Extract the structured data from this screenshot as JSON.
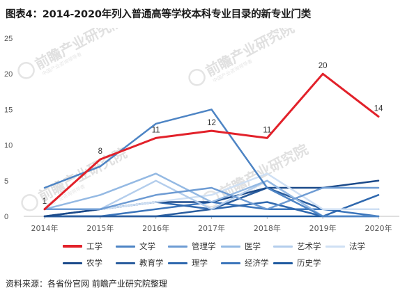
{
  "title": "图表4：2014-2020年列入普通高等学校本科专业目录的新专业门类",
  "source": "资料来源：各省份官网 前瞻产业研究院整理",
  "watermark": {
    "brand": "前瞻产业研究院",
    "sub": "中国产业咨询领导者"
  },
  "chart_data": {
    "type": "line",
    "title": "图表4：2014-2020年列入普通高等学校本科专业目录的新专业门类",
    "x": [
      "2014年",
      "2015年",
      "2016年",
      "2017年",
      "2018年",
      "2019年",
      "2020年"
    ],
    "ylim": [
      0,
      25
    ],
    "yticks": [
      0,
      5,
      10,
      15,
      20,
      25
    ],
    "grid": false,
    "legend_position": "bottom",
    "series": [
      {
        "name": "工学",
        "color": "#e2212a",
        "width": 3,
        "labeled": true,
        "values": [
          1,
          8,
          11,
          12,
          11,
          20,
          14
        ]
      },
      {
        "name": "文学",
        "color": "#4d84c4",
        "width": 2.5,
        "values": [
          4,
          7,
          13,
          15,
          4,
          0,
          0
        ]
      },
      {
        "name": "管理学",
        "color": "#6d9bd3",
        "width": 2.5,
        "values": [
          1,
          1,
          3,
          4,
          1,
          4,
          4
        ]
      },
      {
        "name": "医学",
        "color": "#94b9e3",
        "width": 2.5,
        "values": [
          1,
          3,
          6,
          2,
          5,
          0,
          0
        ]
      },
      {
        "name": "艺术学",
        "color": "#b3cdec",
        "width": 2.5,
        "values": [
          1,
          1,
          5,
          1,
          5,
          0,
          0
        ]
      },
      {
        "name": "法学",
        "color": "#cfe0f4",
        "width": 2.5,
        "values": [
          1,
          1,
          2,
          3,
          6,
          1,
          1
        ]
      },
      {
        "name": "农学",
        "color": "#1b4a8a",
        "width": 2.5,
        "values": [
          0,
          1,
          2,
          2,
          4,
          4,
          5
        ]
      },
      {
        "name": "教育学",
        "color": "#2a5d9e",
        "width": 2.5,
        "values": [
          0,
          0,
          0,
          1,
          4,
          1,
          1
        ]
      },
      {
        "name": "理学",
        "color": "#2f68ae",
        "width": 2.5,
        "values": [
          0,
          1,
          2,
          1,
          2,
          0,
          3
        ]
      },
      {
        "name": "经济学",
        "color": "#3b75bb",
        "width": 2.5,
        "values": [
          0,
          0,
          1,
          2,
          1,
          1,
          0
        ]
      },
      {
        "name": "历史学",
        "color": "#1f5aa0",
        "width": 2.5,
        "values": [
          0,
          0,
          0,
          0,
          0,
          0,
          0
        ]
      }
    ]
  }
}
